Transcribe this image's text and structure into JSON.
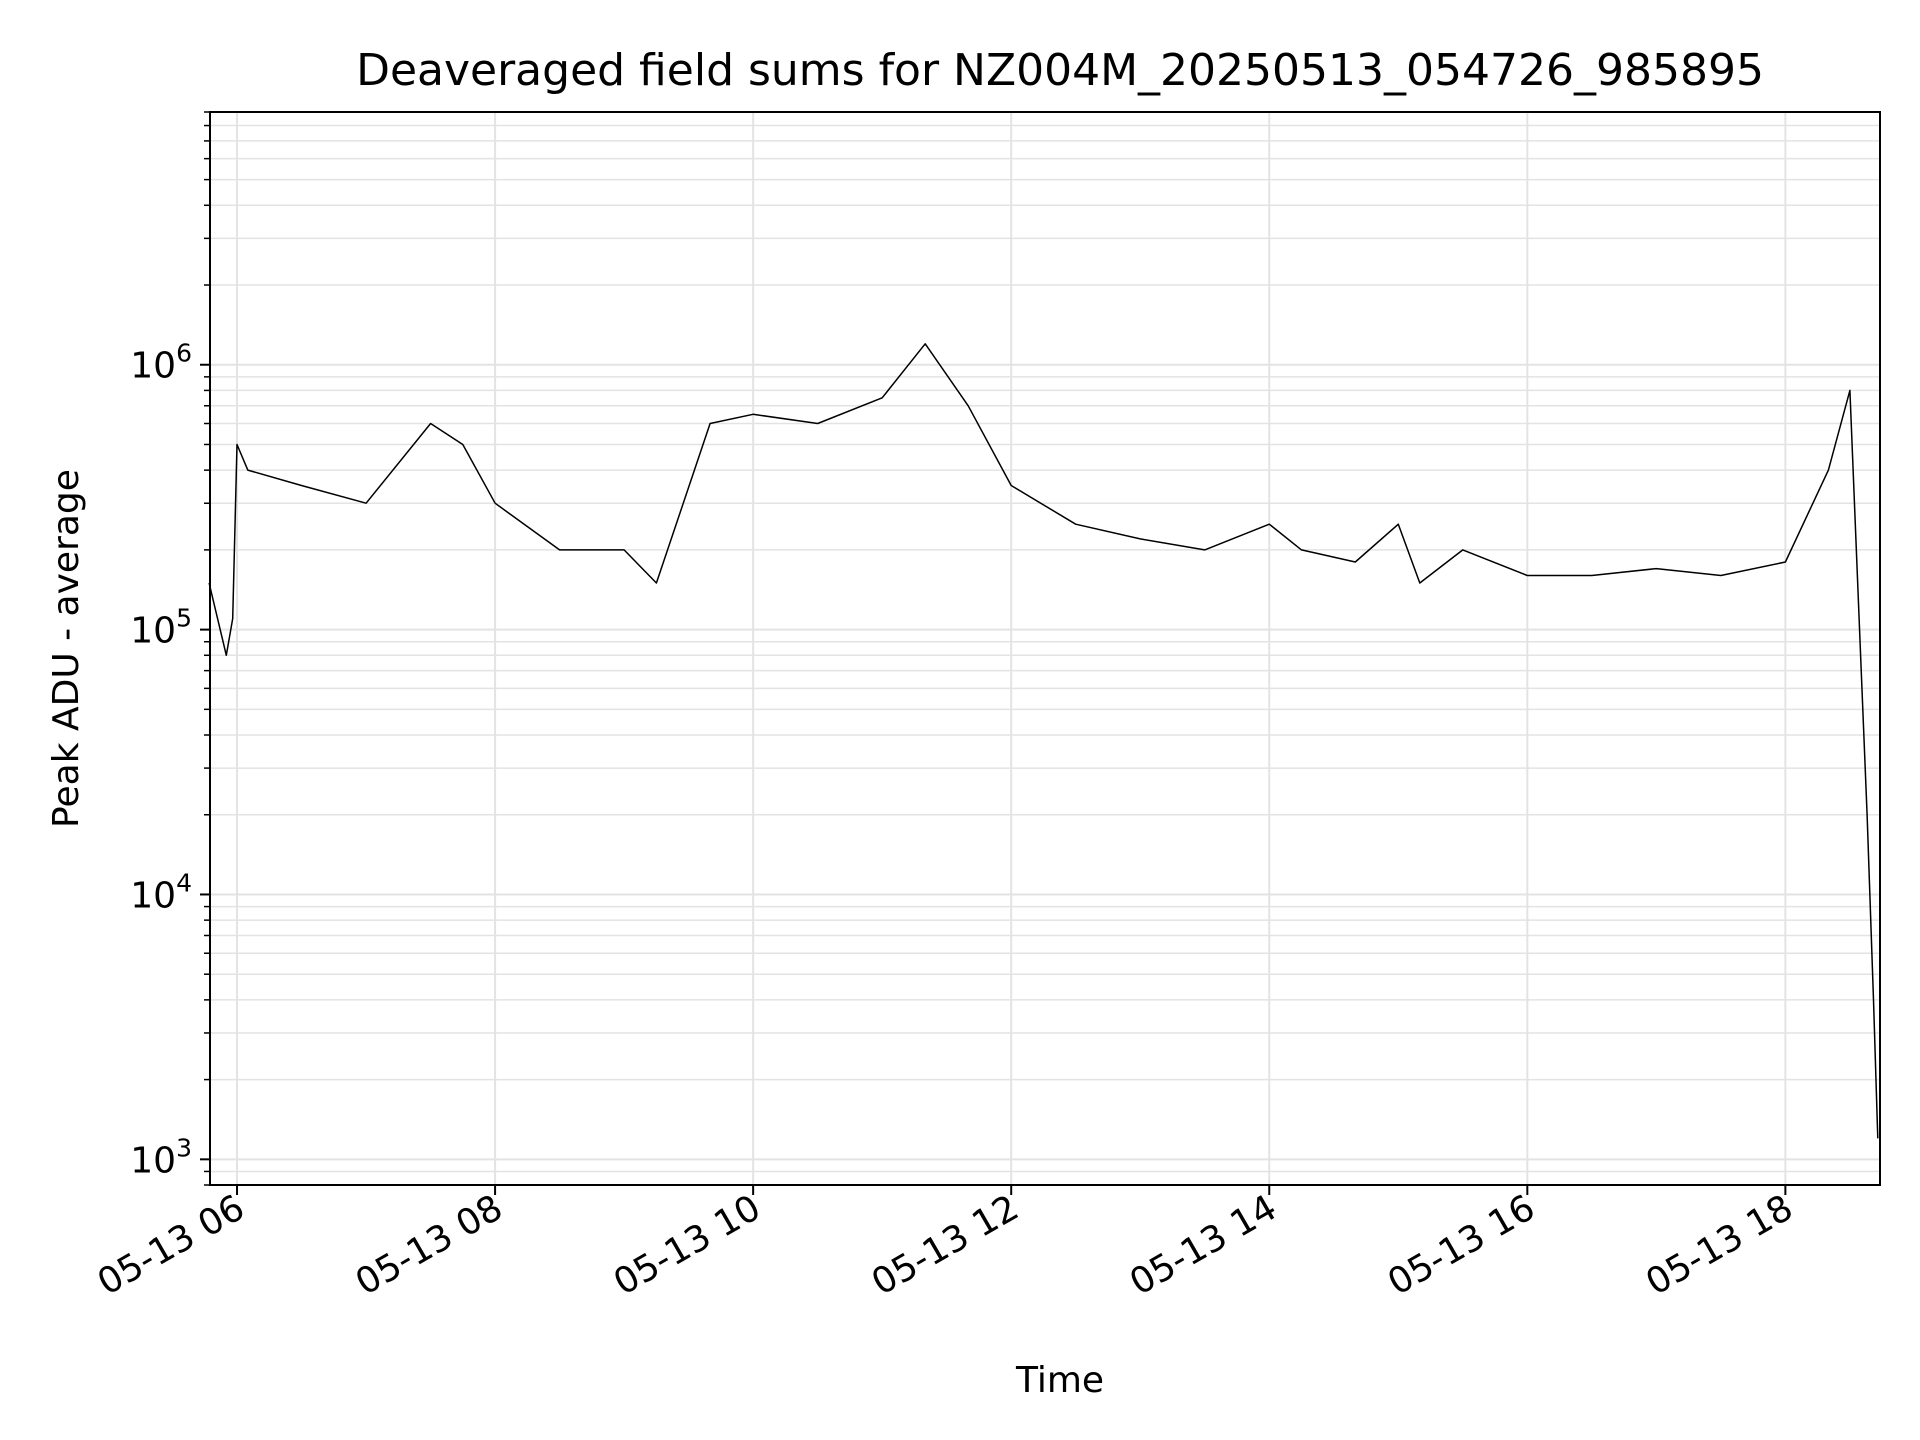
{
  "chart_data": {
    "type": "line",
    "title": "Deaveraged field sums for NZ004M_20250513_054726_985895",
    "xlabel": "Time",
    "ylabel": "Peak ADU - average",
    "xlim": [
      "2025-05-13 05:47:26",
      "2025-05-13 18:44:00"
    ],
    "ylim": [
      800,
      9000000
    ],
    "yscale": "log",
    "grid": true,
    "line_color": "#000000",
    "grid_color": "#e3e3e3",
    "x_ticks": [
      {
        "label": "05-13 06",
        "value": "2025-05-13 06:00"
      },
      {
        "label": "05-13 08",
        "value": "2025-05-13 08:00"
      },
      {
        "label": "05-13 10",
        "value": "2025-05-13 10:00"
      },
      {
        "label": "05-13 12",
        "value": "2025-05-13 12:00"
      },
      {
        "label": "05-13 14",
        "value": "2025-05-13 14:00"
      },
      {
        "label": "05-13 16",
        "value": "2025-05-13 16:00"
      },
      {
        "label": "05-13 18",
        "value": "2025-05-13 18:00"
      }
    ],
    "y_ticks": [
      {
        "base": "10",
        "exp": "3",
        "value": 1000
      },
      {
        "base": "10",
        "exp": "4",
        "value": 10000
      },
      {
        "base": "10",
        "exp": "5",
        "value": 100000
      },
      {
        "base": "10",
        "exp": "6",
        "value": 1000000
      }
    ],
    "series": [
      {
        "x": [
          "2025-05-13 05:47",
          "2025-05-13 05:55",
          "2025-05-13 05:58",
          "2025-05-13 06:00",
          "2025-05-13 06:05",
          "2025-05-13 06:30",
          "2025-05-13 07:00",
          "2025-05-13 07:30",
          "2025-05-13 07:45",
          "2025-05-13 08:00",
          "2025-05-13 08:30",
          "2025-05-13 09:00",
          "2025-05-13 09:15",
          "2025-05-13 09:40",
          "2025-05-13 10:00",
          "2025-05-13 10:30",
          "2025-05-13 11:00",
          "2025-05-13 11:20",
          "2025-05-13 11:40",
          "2025-05-13 12:00",
          "2025-05-13 12:30",
          "2025-05-13 13:00",
          "2025-05-13 13:30",
          "2025-05-13 14:00",
          "2025-05-13 14:15",
          "2025-05-13 14:40",
          "2025-05-13 15:00",
          "2025-05-13 15:10",
          "2025-05-13 15:30",
          "2025-05-13 16:00",
          "2025-05-13 16:30",
          "2025-05-13 17:00",
          "2025-05-13 17:30",
          "2025-05-13 18:00",
          "2025-05-13 18:20",
          "2025-05-13 18:30",
          "2025-05-13 18:35",
          "2025-05-13 18:38",
          "2025-05-13 18:41",
          "2025-05-13 18:43"
        ],
        "y": [
          150000,
          80000,
          110000,
          500000,
          400000,
          350000,
          300000,
          600000,
          500000,
          300000,
          200000,
          200000,
          150000,
          600000,
          650000,
          600000,
          750000,
          1200000,
          700000,
          350000,
          250000,
          220000,
          200000,
          250000,
          200000,
          180000,
          250000,
          150000,
          200000,
          160000,
          160000,
          170000,
          160000,
          180000,
          400000,
          800000,
          80000,
          20000,
          4000,
          1200
        ]
      }
    ]
  }
}
